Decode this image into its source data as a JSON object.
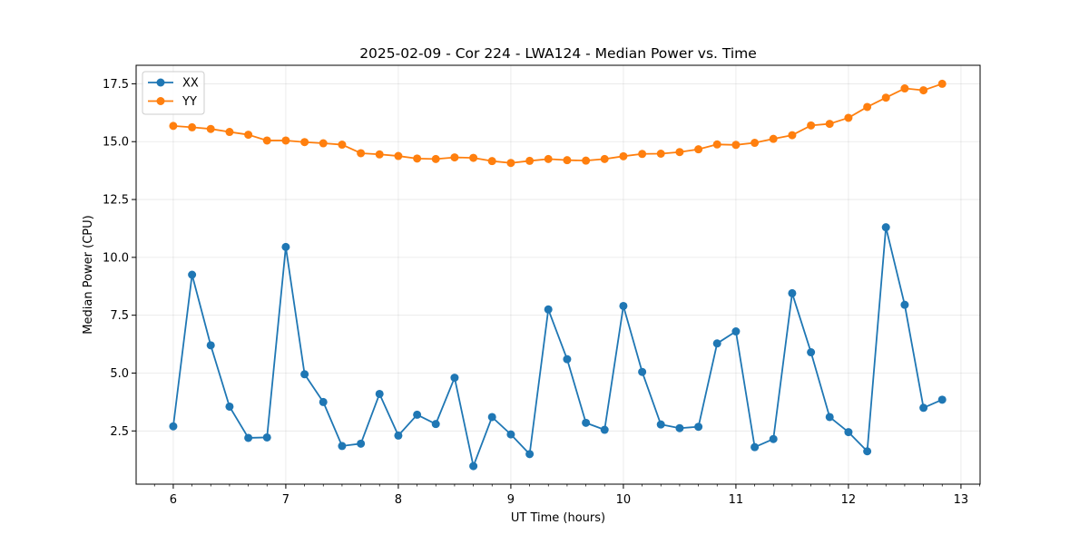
{
  "chart_data": {
    "type": "line",
    "title": "2025-02-09 - Cor 224 - LWA124 - Median Power vs. Time",
    "xlabel": "UT Time (hours)",
    "ylabel": "Median Power (CPU)",
    "xlim": [
      5.67,
      13.17
    ],
    "ylim": [
      0.2,
      18.3
    ],
    "xticks": [
      {
        "value": 6,
        "label": "6"
      },
      {
        "value": 7,
        "label": "7"
      },
      {
        "value": 8,
        "label": "8"
      },
      {
        "value": 9,
        "label": "9"
      },
      {
        "value": 10,
        "label": "10"
      },
      {
        "value": 11,
        "label": "11"
      },
      {
        "value": 12,
        "label": "12"
      },
      {
        "value": 13,
        "label": "13"
      }
    ],
    "yticks": [
      {
        "value": 2.5,
        "label": "2.5"
      },
      {
        "value": 5.0,
        "label": "5.0"
      },
      {
        "value": 7.5,
        "label": "7.5"
      },
      {
        "value": 10.0,
        "label": "10.0"
      },
      {
        "value": 12.5,
        "label": "12.5"
      },
      {
        "value": 15.0,
        "label": "15.0"
      },
      {
        "value": 17.5,
        "label": "17.5"
      }
    ],
    "grid": true,
    "legend_position": "top-left",
    "x": [
      6.0,
      6.167,
      6.333,
      6.5,
      6.667,
      6.833,
      7.0,
      7.167,
      7.333,
      7.5,
      7.667,
      7.833,
      8.0,
      8.167,
      8.333,
      8.5,
      8.667,
      8.833,
      9.0,
      9.167,
      9.333,
      9.5,
      9.667,
      9.833,
      10.0,
      10.167,
      10.333,
      10.5,
      10.667,
      10.833,
      11.0,
      11.167,
      11.333,
      11.5,
      11.667,
      11.833,
      12.0,
      12.167,
      12.333,
      12.5,
      12.667,
      12.833
    ],
    "series": [
      {
        "name": "XX",
        "color": "#1f77b4",
        "values": [
          2.7,
          9.25,
          6.2,
          3.55,
          2.2,
          2.22,
          10.45,
          4.95,
          3.75,
          1.85,
          1.95,
          4.1,
          2.3,
          3.2,
          2.8,
          4.8,
          0.98,
          3.1,
          2.35,
          1.5,
          7.75,
          5.6,
          2.85,
          2.55,
          7.9,
          5.05,
          2.78,
          2.62,
          2.68,
          6.28,
          6.8,
          1.8,
          2.15,
          8.45,
          5.9,
          3.1,
          2.45,
          1.62,
          11.3,
          7.95,
          3.5,
          3.85
        ]
      },
      {
        "name": "YY",
        "color": "#ff7f0e",
        "values": [
          15.68,
          15.62,
          15.55,
          15.42,
          15.3,
          15.05,
          15.05,
          14.98,
          14.93,
          14.87,
          14.5,
          14.45,
          14.38,
          14.27,
          14.25,
          14.32,
          14.3,
          14.16,
          14.08,
          14.17,
          14.25,
          14.2,
          14.18,
          14.25,
          14.37,
          14.47,
          14.48,
          14.55,
          14.67,
          14.88,
          14.86,
          14.95,
          15.12,
          15.28,
          15.7,
          15.77,
          16.03,
          16.5,
          16.9,
          17.3,
          17.22,
          17.5
        ]
      }
    ]
  }
}
